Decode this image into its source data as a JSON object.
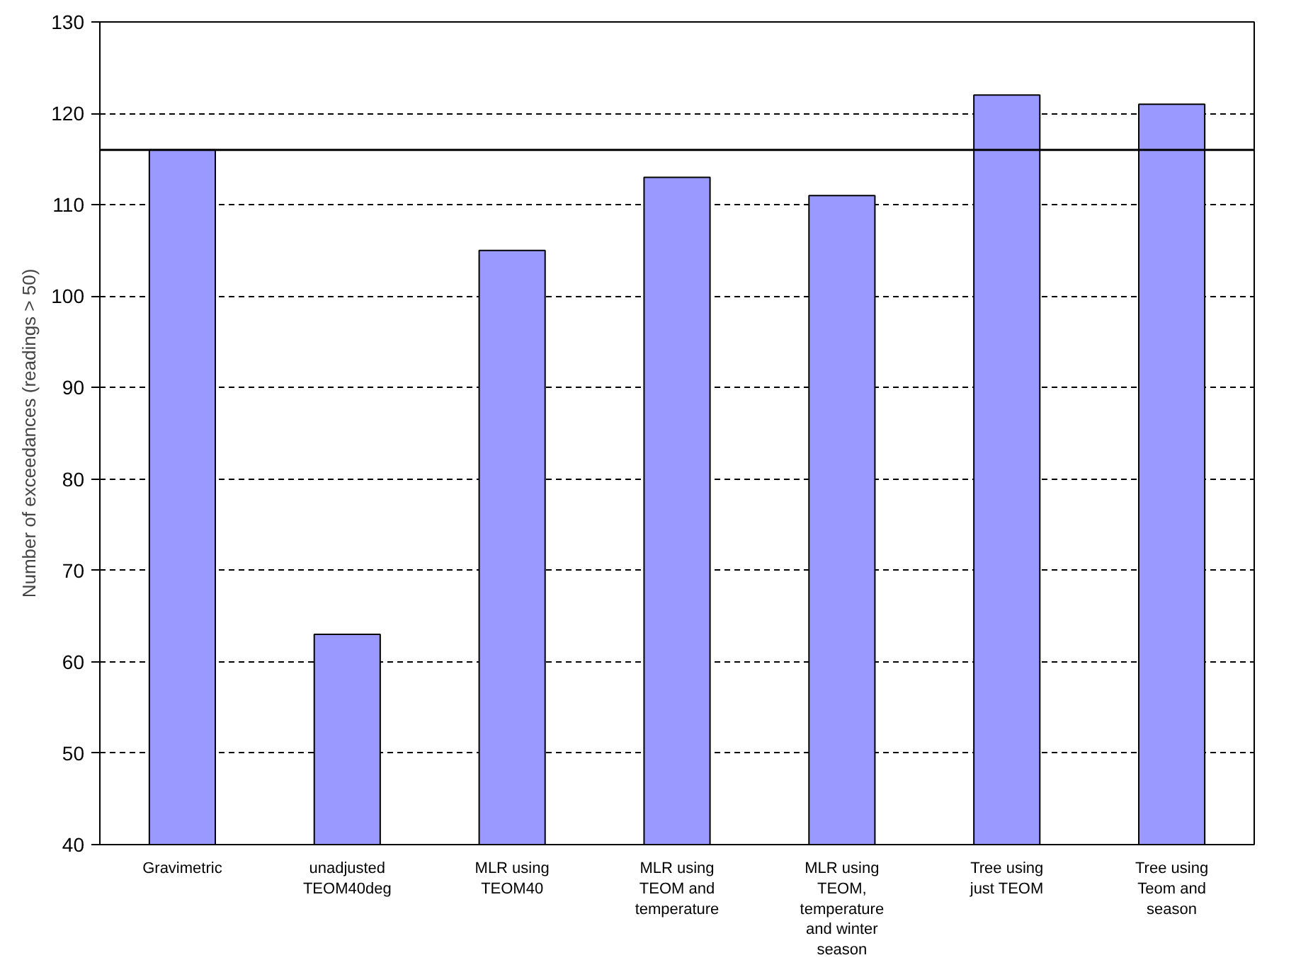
{
  "chart_data": {
    "type": "bar",
    "ylabel": "Number of exceedances (readings > 50)",
    "categories": [
      "Gravimetric",
      "unadjusted\nTEOM40deg",
      "MLR using\nTEOM40",
      "MLR using\nTEOM and\ntemperature",
      "MLR using\nTEOM,\ntemperature\nand winter\nseason",
      "Tree using\njust TEOM",
      "Tree using\nTeom and\nseason"
    ],
    "values": [
      116,
      63,
      105,
      113,
      111,
      122,
      121
    ],
    "color": "#9999ff",
    "ylim": [
      40,
      130
    ],
    "yticks": [
      40,
      50,
      60,
      70,
      80,
      90,
      100,
      110,
      120,
      130
    ],
    "grid": "y",
    "ref_lines": [
      {
        "axis": "y",
        "value": 116,
        "color": "#000000",
        "line_style": "solid"
      }
    ]
  }
}
